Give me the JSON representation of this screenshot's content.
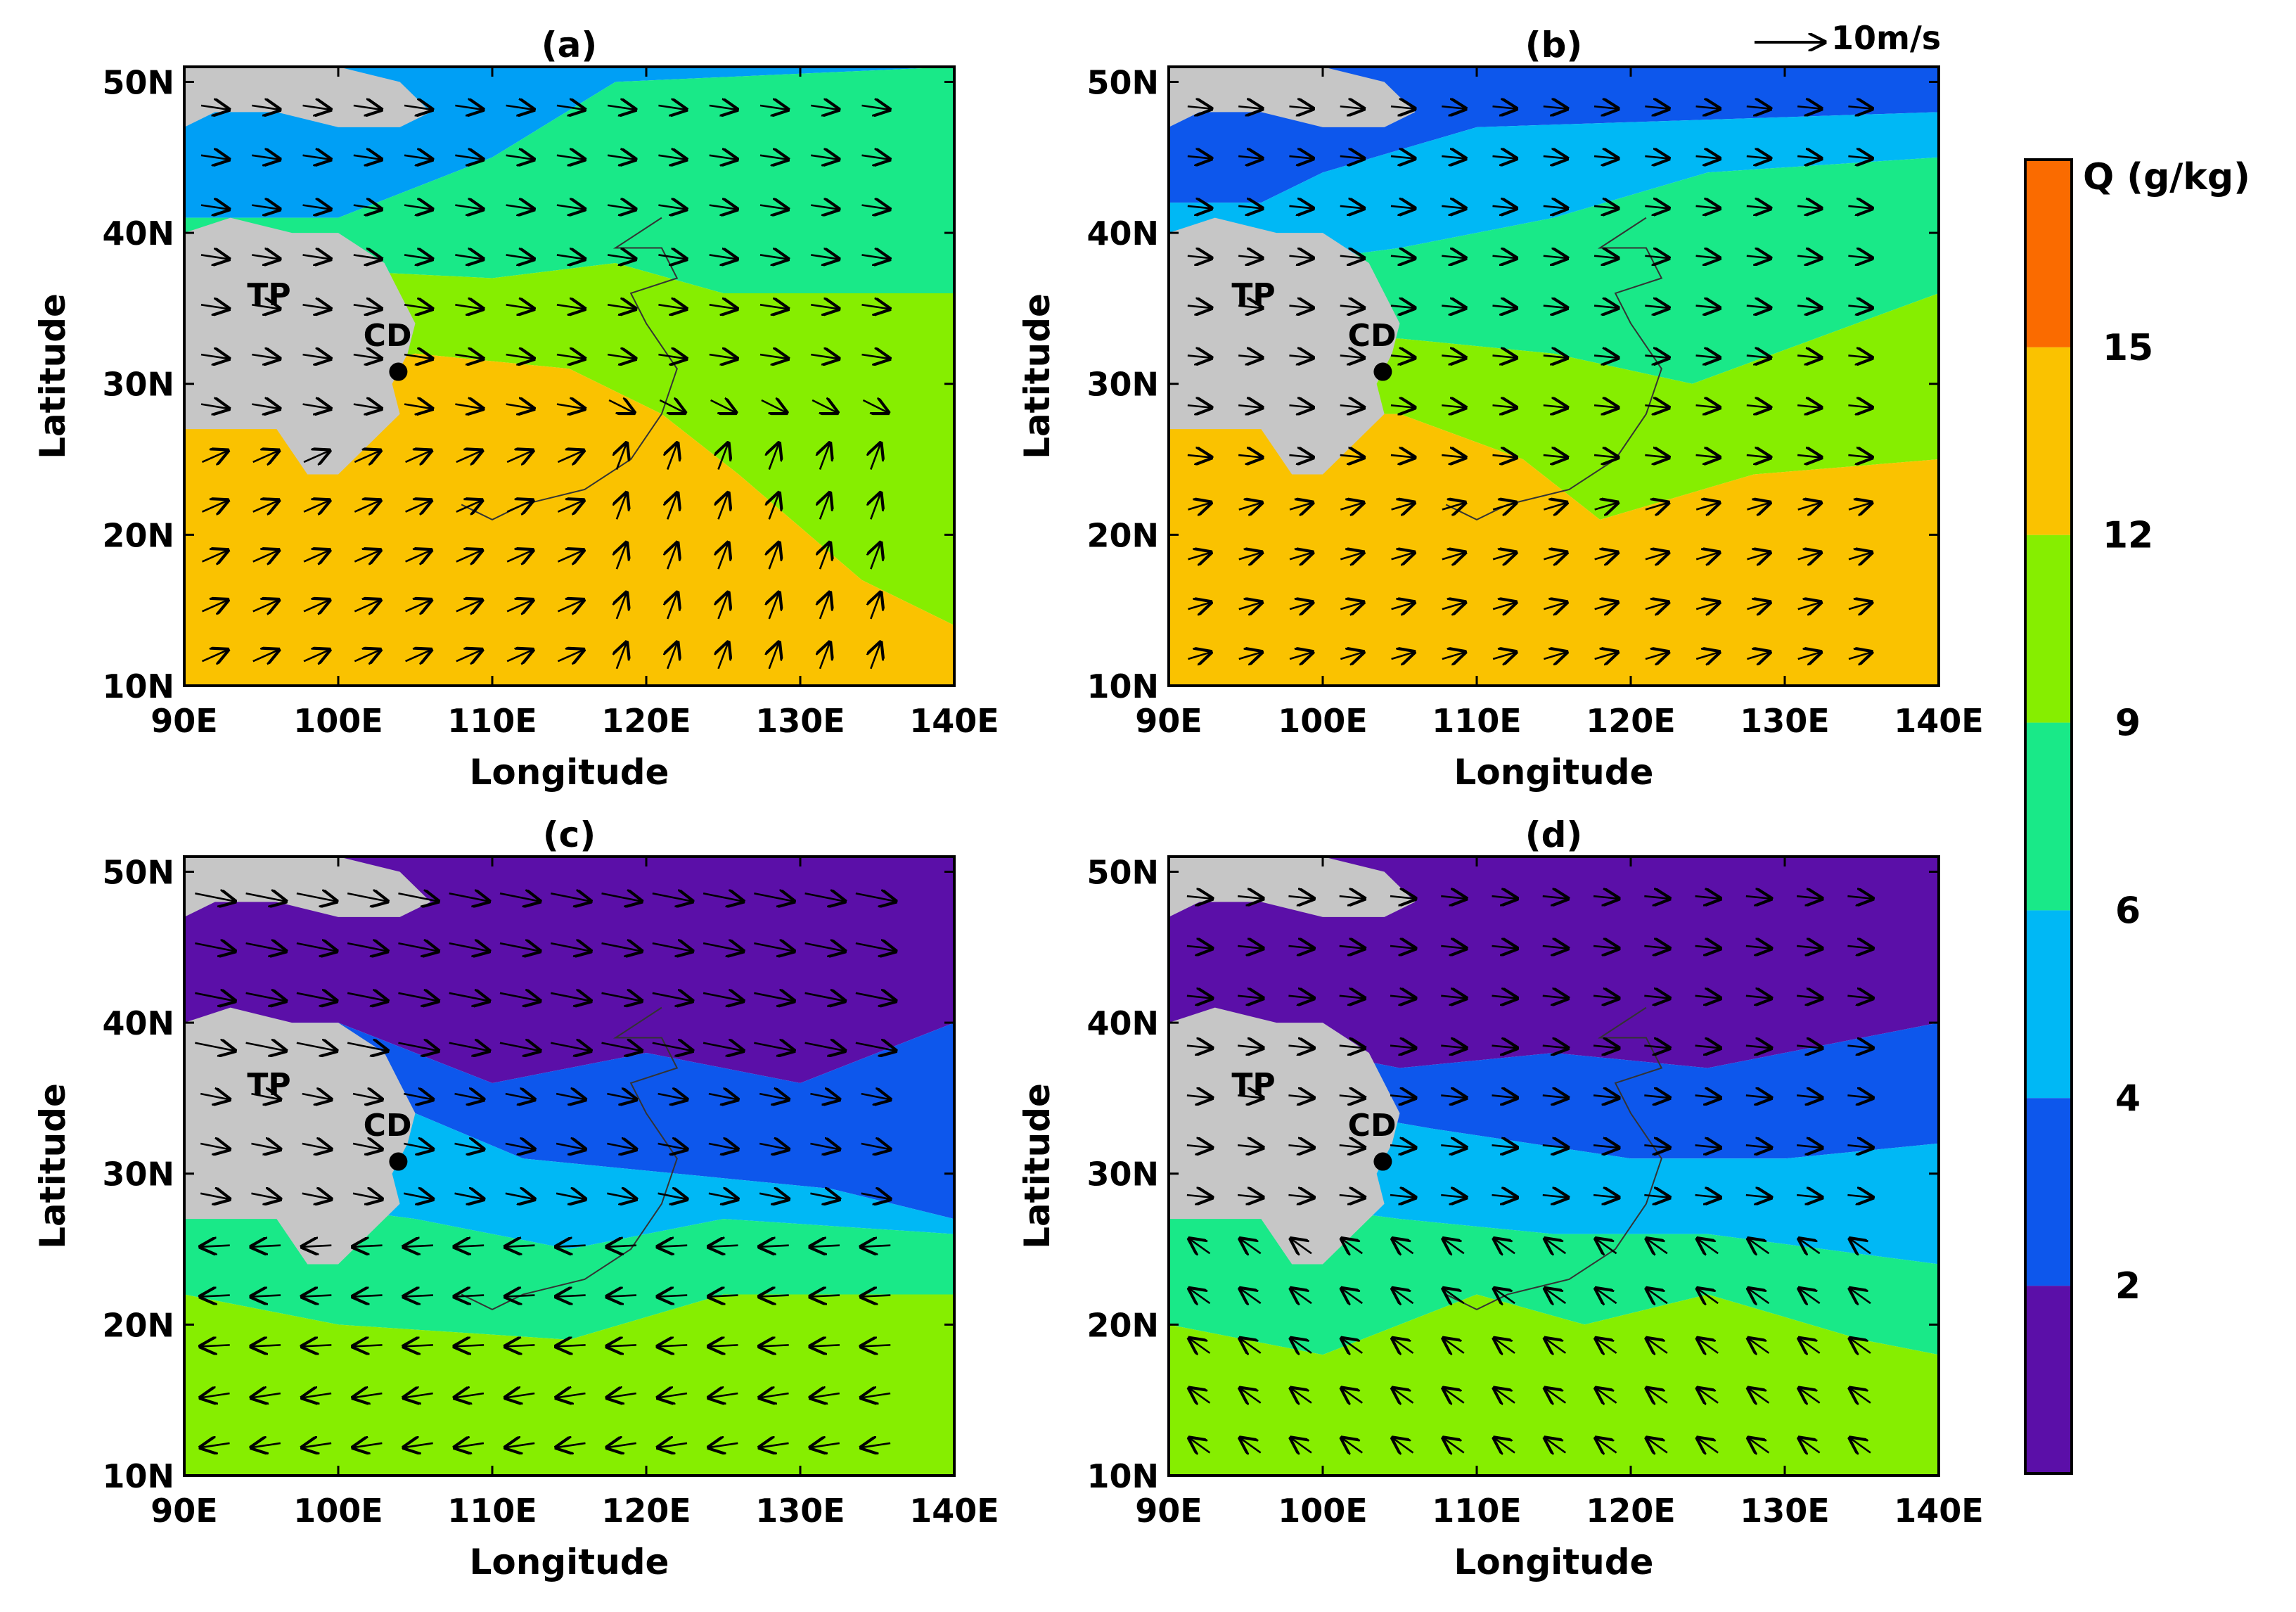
{
  "figure": {
    "vector_reference": {
      "label": "10m/s"
    },
    "panels": [
      {
        "id": "a",
        "label": "(a)",
        "wind_pattern": "southwest",
        "colors": [
          "#009ff5",
          "#19e988",
          "#86ee00",
          "#fac200",
          "#fa6b00"
        ]
      },
      {
        "id": "b",
        "label": "(b)",
        "wind_pattern": "southwest-weak",
        "colors": [
          "#0d57ec",
          "#00b8f5",
          "#19e988",
          "#86ee00",
          "#fac200"
        ]
      },
      {
        "id": "c",
        "label": "(c)",
        "wind_pattern": "northeast",
        "colors": [
          "#5b0fa8",
          "#0d57ec",
          "#00b8f5",
          "#19e988",
          "#86ee00"
        ]
      },
      {
        "id": "d",
        "label": "(d)",
        "wind_pattern": "northeast-weak",
        "colors": [
          "#5b0fa8",
          "#0d57ec",
          "#00b8f5",
          "#19e988",
          "#86ee00"
        ]
      }
    ],
    "x_axis": {
      "label": "Longitude",
      "ticks": [
        "90E",
        "100E",
        "110E",
        "120E",
        "130E",
        "140E"
      ]
    },
    "y_axis": {
      "label": "Latitude",
      "ticks": [
        "10N",
        "20N",
        "30N",
        "40N",
        "50N"
      ]
    },
    "annotations": {
      "plateau": "TP",
      "city": "CD"
    },
    "colorbar": {
      "title": "Q (g/kg)",
      "ticks": [
        "15",
        "12",
        "9",
        "6",
        "4",
        "2"
      ],
      "bands": [
        "#fa6b00",
        "#fac200",
        "#86ee00",
        "#19e988",
        "#00b8f5",
        "#0d57ec",
        "#5b0fa8"
      ]
    },
    "land_color": "#c6c6c6"
  }
}
